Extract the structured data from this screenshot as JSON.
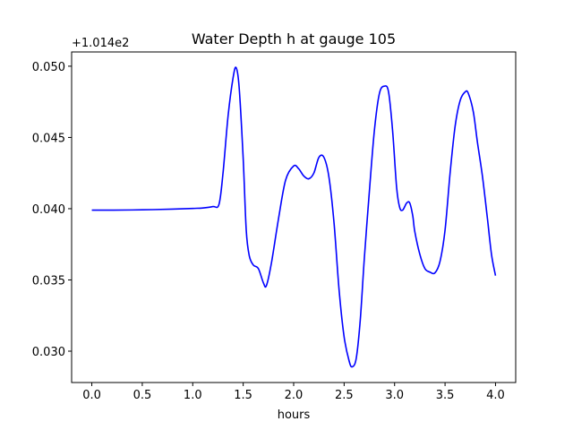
{
  "chart_data": {
    "type": "line",
    "title": "Water Depth h at gauge 105",
    "xlabel": "hours",
    "ylabel": "",
    "offset_label": "+1.014e2",
    "xlim": [
      -0.2,
      4.2
    ],
    "ylim": [
      0.0278,
      0.051
    ],
    "x_ticks": [
      0.0,
      0.5,
      1.0,
      1.5,
      2.0,
      2.5,
      3.0,
      3.5,
      4.0
    ],
    "x_tick_labels": [
      "0.0",
      "0.5",
      "1.0",
      "1.5",
      "2.0",
      "2.5",
      "3.0",
      "3.5",
      "4.0"
    ],
    "y_ticks": [
      0.03,
      0.035,
      0.04,
      0.045,
      0.05
    ],
    "y_tick_labels": [
      "0.030",
      "0.035",
      "0.040",
      "0.045",
      "0.050"
    ],
    "grid": false,
    "series": [
      {
        "color": "#0000ff",
        "x": [
          0.0,
          0.2,
          0.5,
          0.8,
          1.0,
          1.1,
          1.2,
          1.26,
          1.3,
          1.35,
          1.4,
          1.43,
          1.46,
          1.5,
          1.53,
          1.56,
          1.6,
          1.65,
          1.7,
          1.73,
          1.78,
          1.85,
          1.92,
          2.0,
          2.05,
          2.1,
          2.15,
          2.2,
          2.25,
          2.3,
          2.35,
          2.4,
          2.45,
          2.5,
          2.55,
          2.58,
          2.62,
          2.66,
          2.7,
          2.75,
          2.8,
          2.85,
          2.9,
          2.94,
          2.98,
          3.02,
          3.05,
          3.08,
          3.12,
          3.15,
          3.18,
          3.2,
          3.25,
          3.3,
          3.35,
          3.4,
          3.45,
          3.5,
          3.55,
          3.6,
          3.65,
          3.7,
          3.73,
          3.78,
          3.82,
          3.87,
          3.92,
          3.96,
          4.0
        ],
        "y": [
          0.0399,
          0.0399,
          0.03992,
          0.03997,
          0.04002,
          0.04005,
          0.04015,
          0.0403,
          0.0425,
          0.0465,
          0.0492,
          0.0499,
          0.0485,
          0.0435,
          0.0385,
          0.0367,
          0.03605,
          0.0358,
          0.0348,
          0.0346,
          0.0362,
          0.0393,
          0.042,
          0.043,
          0.0428,
          0.0423,
          0.0421,
          0.0425,
          0.0436,
          0.0436,
          0.0422,
          0.039,
          0.0343,
          0.031,
          0.0293,
          0.0289,
          0.0295,
          0.0322,
          0.0365,
          0.0412,
          0.0455,
          0.0481,
          0.0486,
          0.0482,
          0.0455,
          0.0415,
          0.0401,
          0.0399,
          0.0404,
          0.0404,
          0.0395,
          0.0384,
          0.0368,
          0.0358,
          0.03555,
          0.0355,
          0.0363,
          0.0385,
          0.0425,
          0.0458,
          0.0476,
          0.0482,
          0.0481,
          0.0468,
          0.0447,
          0.0423,
          0.0393,
          0.0368,
          0.0353
        ]
      }
    ]
  }
}
